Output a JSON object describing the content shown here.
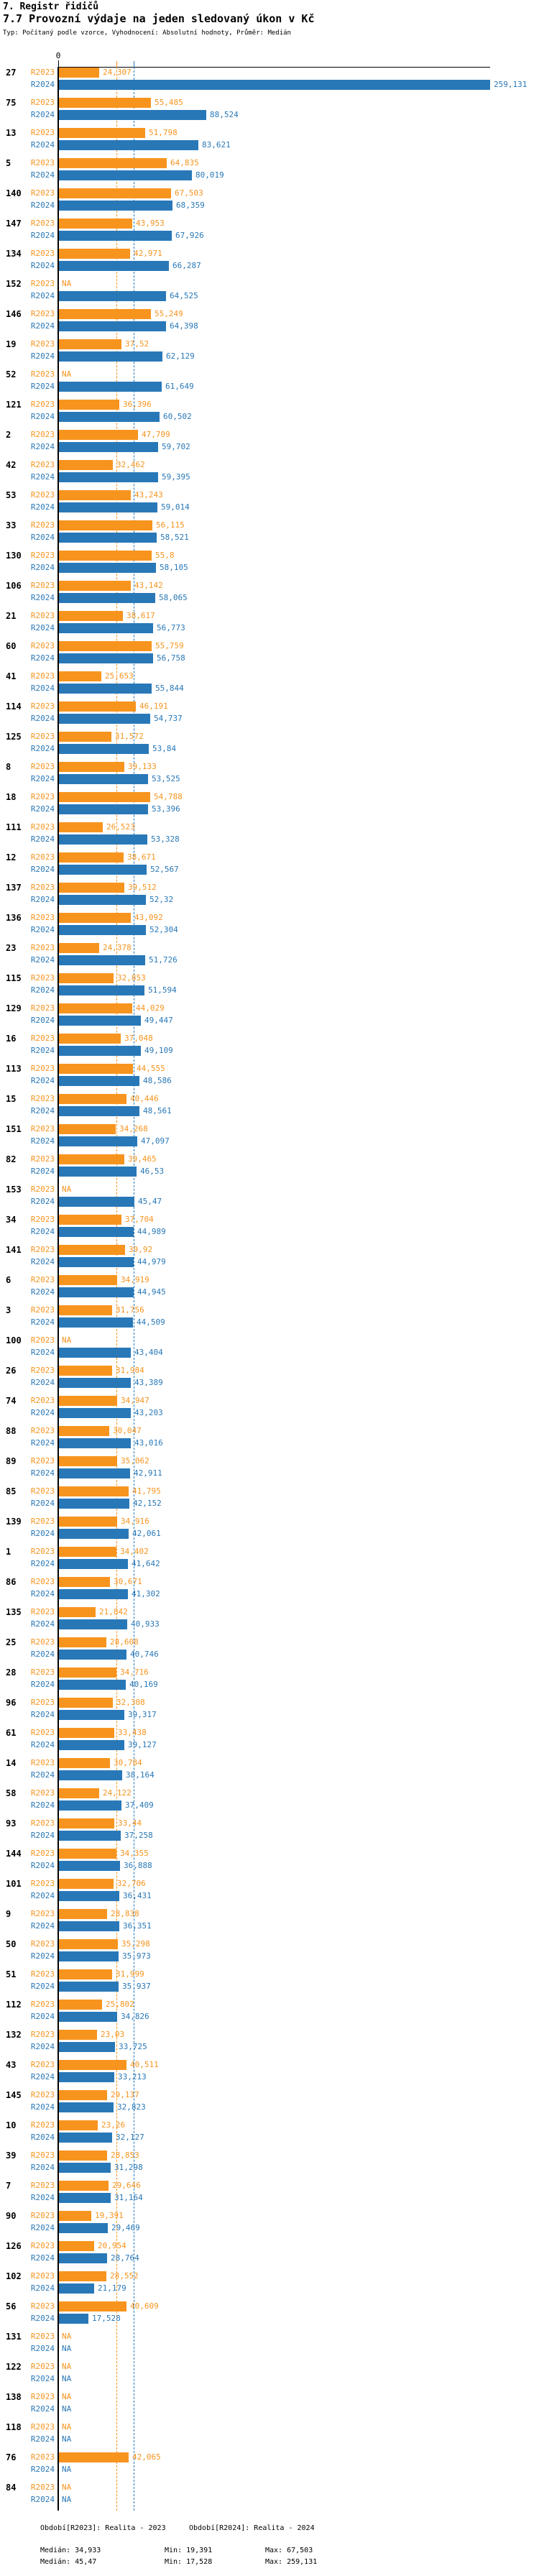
{
  "header": {
    "title1": "7. Registr řidičů",
    "title2": "7.7 Provozní výdaje na jeden sledovaný úkon v Kč",
    "subtitle": "Typ: Počítaný podle vzorce, Vyhodnocení: Absolutní hodnoty, Průměr: Medián"
  },
  "axis": {
    "zero_label": "0"
  },
  "colors": {
    "r2023": "#F7941E",
    "r2024": "#2878B8",
    "axis": "#000000"
  },
  "series_labels": {
    "r2023": "R2023",
    "r2024": "R2024"
  },
  "na_label": "NA",
  "legend": {
    "r2023": {
      "period": "Období[R2023]: Realita - 2023",
      "median": "Medián: 34,933",
      "min": "Min: 19,391",
      "max": "Max: 67,503"
    },
    "r2024": {
      "period": "Období[R2024]: Realita - 2024",
      "median": "Medián: 45,47",
      "min": "Min: 17,528",
      "max": "Max: 259,131"
    }
  },
  "chart_data": {
    "type": "bar",
    "orientation": "horizontal",
    "title": "7.7 Provozní výdaje na jeden sledovaný úkon v Kč",
    "unit": "Kč",
    "note": "value labels use Czech decimal comma; numeric = integer part × 1000 + padded fraction",
    "max_value": 259131,
    "median_2023_label": "34,933",
    "median_2024_label": "45,47",
    "median_2023_value": 34933,
    "median_2024_value": 45470,
    "series": [
      "R2023",
      "R2024"
    ],
    "legend_position": "bottom",
    "rows": [
      {
        "id": "27",
        "r2023": "24,307",
        "r2024": "259,131"
      },
      {
        "id": "75",
        "r2023": "55,485",
        "r2024": "88,524"
      },
      {
        "id": "13",
        "r2023": "51,798",
        "r2024": "83,621"
      },
      {
        "id": "5",
        "r2023": "64,835",
        "r2024": "80,019"
      },
      {
        "id": "140",
        "r2023": "67,503",
        "r2024": "68,359"
      },
      {
        "id": "147",
        "r2023": "43,953",
        "r2024": "67,926"
      },
      {
        "id": "134",
        "r2023": "42,971",
        "r2024": "66,287"
      },
      {
        "id": "152",
        "r2023": null,
        "r2024": "64,525"
      },
      {
        "id": "146",
        "r2023": "55,249",
        "r2024": "64,398"
      },
      {
        "id": "19",
        "r2023": "37,52",
        "r2024": "62,129"
      },
      {
        "id": "52",
        "r2023": null,
        "r2024": "61,649"
      },
      {
        "id": "121",
        "r2023": "36,396",
        "r2024": "60,502"
      },
      {
        "id": "2",
        "r2023": "47,709",
        "r2024": "59,702"
      },
      {
        "id": "42",
        "r2023": "32,462",
        "r2024": "59,395"
      },
      {
        "id": "53",
        "r2023": "43,243",
        "r2024": "59,014"
      },
      {
        "id": "33",
        "r2023": "56,115",
        "r2024": "58,521"
      },
      {
        "id": "130",
        "r2023": "55,8",
        "r2024": "58,105"
      },
      {
        "id": "106",
        "r2023": "43,142",
        "r2024": "58,065"
      },
      {
        "id": "21",
        "r2023": "38,617",
        "r2024": "56,773"
      },
      {
        "id": "60",
        "r2023": "55,759",
        "r2024": "56,758"
      },
      {
        "id": "41",
        "r2023": "25,653",
        "r2024": "55,844"
      },
      {
        "id": "114",
        "r2023": "46,191",
        "r2024": "54,737"
      },
      {
        "id": "125",
        "r2023": "31,572",
        "r2024": "53,84"
      },
      {
        "id": "8",
        "r2023": "39,133",
        "r2024": "53,525"
      },
      {
        "id": "18",
        "r2023": "54,788",
        "r2024": "53,396"
      },
      {
        "id": "111",
        "r2023": "26,523",
        "r2024": "53,328"
      },
      {
        "id": "12",
        "r2023": "38,671",
        "r2024": "52,567"
      },
      {
        "id": "137",
        "r2023": "39,512",
        "r2024": "52,32"
      },
      {
        "id": "136",
        "r2023": "43,092",
        "r2024": "52,304"
      },
      {
        "id": "23",
        "r2023": "24,378",
        "r2024": "51,726"
      },
      {
        "id": "115",
        "r2023": "32,853",
        "r2024": "51,594"
      },
      {
        "id": "129",
        "r2023": "44,029",
        "r2024": "49,447"
      },
      {
        "id": "16",
        "r2023": "37,048",
        "r2024": "49,109"
      },
      {
        "id": "113",
        "r2023": "44,555",
        "r2024": "48,586"
      },
      {
        "id": "15",
        "r2023": "40,446",
        "r2024": "48,561"
      },
      {
        "id": "151",
        "r2023": "34,268",
        "r2024": "47,097"
      },
      {
        "id": "82",
        "r2023": "39,465",
        "r2024": "46,53"
      },
      {
        "id": "153",
        "r2023": null,
        "r2024": "45,47"
      },
      {
        "id": "34",
        "r2023": "37,704",
        "r2024": "44,989"
      },
      {
        "id": "141",
        "r2023": "39,92",
        "r2024": "44,979"
      },
      {
        "id": "6",
        "r2023": "34,919",
        "r2024": "44,945"
      },
      {
        "id": "3",
        "r2023": "31,756",
        "r2024": "44,509"
      },
      {
        "id": "100",
        "r2023": null,
        "r2024": "43,404"
      },
      {
        "id": "26",
        "r2023": "31,984",
        "r2024": "43,389"
      },
      {
        "id": "74",
        "r2023": "34,947",
        "r2024": "43,203"
      },
      {
        "id": "88",
        "r2023": "30,047",
        "r2024": "43,016"
      },
      {
        "id": "89",
        "r2023": "35,062",
        "r2024": "42,911"
      },
      {
        "id": "85",
        "r2023": "41,795",
        "r2024": "42,152"
      },
      {
        "id": "139",
        "r2023": "34,916",
        "r2024": "42,061"
      },
      {
        "id": "1",
        "r2023": "34,402",
        "r2024": "41,642"
      },
      {
        "id": "86",
        "r2023": "30,671",
        "r2024": "41,302"
      },
      {
        "id": "135",
        "r2023": "21,842",
        "r2024": "40,933"
      },
      {
        "id": "25",
        "r2023": "28,608",
        "r2024": "40,746"
      },
      {
        "id": "28",
        "r2023": "34,716",
        "r2024": "40,169"
      },
      {
        "id": "96",
        "r2023": "32,308",
        "r2024": "39,317"
      },
      {
        "id": "61",
        "r2023": "33,438",
        "r2024": "39,127"
      },
      {
        "id": "14",
        "r2023": "30,784",
        "r2024": "38,164"
      },
      {
        "id": "58",
        "r2023": "24,122",
        "r2024": "37,409"
      },
      {
        "id": "93",
        "r2023": "33,44",
        "r2024": "37,258"
      },
      {
        "id": "144",
        "r2023": "34,355",
        "r2024": "36,888"
      },
      {
        "id": "101",
        "r2023": "32,706",
        "r2024": "36,431"
      },
      {
        "id": "9",
        "r2023": "28,838",
        "r2024": "36,351"
      },
      {
        "id": "50",
        "r2023": "35,298",
        "r2024": "35,973"
      },
      {
        "id": "51",
        "r2023": "31,999",
        "r2024": "35,937"
      },
      {
        "id": "112",
        "r2023": "25,802",
        "r2024": "34,826"
      },
      {
        "id": "132",
        "r2023": "23,03",
        "r2024": "33,725"
      },
      {
        "id": "43",
        "r2023": "40,511",
        "r2024": "33,213"
      },
      {
        "id": "145",
        "r2023": "29,137",
        "r2024": "32,823"
      },
      {
        "id": "10",
        "r2023": "23,26",
        "r2024": "32,127"
      },
      {
        "id": "39",
        "r2023": "28,853",
        "r2024": "31,298"
      },
      {
        "id": "7",
        "r2023": "29,646",
        "r2024": "31,164"
      },
      {
        "id": "90",
        "r2023": "19,391",
        "r2024": "29,469"
      },
      {
        "id": "126",
        "r2023": "20,954",
        "r2024": "28,764"
      },
      {
        "id": "102",
        "r2023": "28,552",
        "r2024": "21,179"
      },
      {
        "id": "56",
        "r2023": "40,609",
        "r2024": "17,528"
      },
      {
        "id": "131",
        "r2023": null,
        "r2024": null
      },
      {
        "id": "122",
        "r2023": null,
        "r2024": null
      },
      {
        "id": "138",
        "r2023": null,
        "r2024": null
      },
      {
        "id": "118",
        "r2023": null,
        "r2024": null
      },
      {
        "id": "76",
        "r2023": "42,065",
        "r2024": null
      },
      {
        "id": "84",
        "r2023": null,
        "r2024": null
      }
    ]
  }
}
